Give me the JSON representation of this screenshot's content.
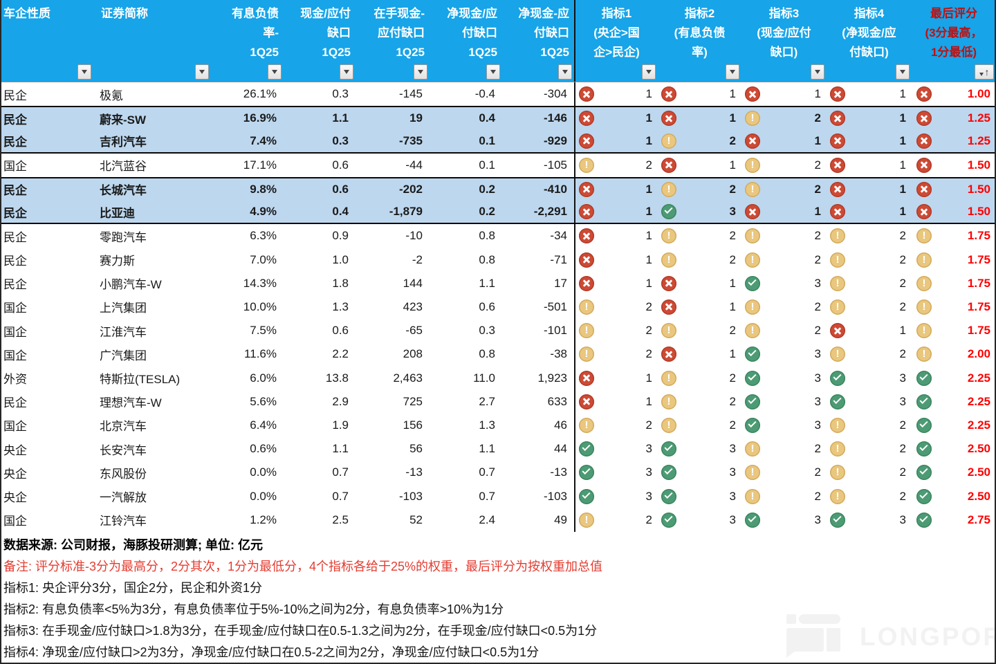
{
  "header": {
    "columns": [
      {
        "label": "车企性质"
      },
      {
        "label": "证券简称"
      },
      {
        "label": "有息负债\n率-\n1Q25"
      },
      {
        "label": "现金/应付\n缺口\n1Q25"
      },
      {
        "label": "在手现金-\n应付缺口\n1Q25"
      },
      {
        "label": "净现金/应\n付缺口\n1Q25"
      },
      {
        "label": "净现金-应\n付缺口\n1Q25"
      },
      {
        "label": "指标1\n(央企>国\n企>民企)"
      },
      {
        "label": "指标2\n(有息负债\n率)"
      },
      {
        "label": "指标3\n(现金/应付\n缺口)"
      },
      {
        "label": "指标4\n(净现金/应\n付缺口)"
      },
      {
        "label": "最后评分\n(3分最高，\n1分最低)",
        "accent": "#bf1010"
      }
    ]
  },
  "rows": [
    {
      "ownership": "民企",
      "name": "极氪",
      "debt_ratio": "26.1%",
      "cash_gap": "0.3",
      "cash_minus_gap": "-145",
      "net_cash_gap": "-0.4",
      "net_cash_minus_gap": "-304",
      "scores": [
        1,
        1,
        1,
        1
      ],
      "final_score": "1.00",
      "final_icon": "x",
      "highlight": false,
      "border_top": false,
      "border_bottom": false
    },
    {
      "ownership": "民企",
      "name": "蔚来-SW",
      "debt_ratio": "16.9%",
      "cash_gap": "1.1",
      "cash_minus_gap": "19",
      "net_cash_gap": "0.4",
      "net_cash_minus_gap": "-146",
      "scores": [
        1,
        1,
        2,
        1
      ],
      "final_score": "1.25",
      "final_icon": "x",
      "highlight": true,
      "border_top": true,
      "border_bottom": false
    },
    {
      "ownership": "民企",
      "name": "吉利汽车",
      "debt_ratio": "7.4%",
      "cash_gap": "0.3",
      "cash_minus_gap": "-735",
      "net_cash_gap": "0.1",
      "net_cash_minus_gap": "-929",
      "scores": [
        1,
        2,
        1,
        1
      ],
      "final_score": "1.25",
      "final_icon": "x",
      "highlight": true,
      "border_top": false,
      "border_bottom": true
    },
    {
      "ownership": "国企",
      "name": "北汽蓝谷",
      "debt_ratio": "17.1%",
      "cash_gap": "0.6",
      "cash_minus_gap": "-44",
      "net_cash_gap": "0.1",
      "net_cash_minus_gap": "-105",
      "scores": [
        2,
        1,
        2,
        1
      ],
      "final_score": "1.50",
      "final_icon": "x",
      "highlight": false,
      "border_top": false,
      "border_bottom": false
    },
    {
      "ownership": "民企",
      "name": "长城汽车",
      "debt_ratio": "9.8%",
      "cash_gap": "0.6",
      "cash_minus_gap": "-202",
      "net_cash_gap": "0.2",
      "net_cash_minus_gap": "-410",
      "scores": [
        1,
        2,
        2,
        1
      ],
      "final_score": "1.50",
      "final_icon": "x",
      "highlight": true,
      "border_top": true,
      "border_bottom": false
    },
    {
      "ownership": "民企",
      "name": "比亚迪",
      "debt_ratio": "4.9%",
      "cash_gap": "0.4",
      "cash_minus_gap": "-1,879",
      "net_cash_gap": "0.2",
      "net_cash_minus_gap": "-2,291",
      "scores": [
        1,
        3,
        1,
        1
      ],
      "final_score": "1.50",
      "final_icon": "x",
      "highlight": true,
      "border_top": false,
      "border_bottom": true
    },
    {
      "ownership": "民企",
      "name": "零跑汽车",
      "debt_ratio": "6.3%",
      "cash_gap": "0.9",
      "cash_minus_gap": "-10",
      "net_cash_gap": "0.8",
      "net_cash_minus_gap": "-34",
      "scores": [
        1,
        2,
        2,
        2
      ],
      "final_score": "1.75",
      "final_icon": "warn",
      "highlight": false,
      "border_top": false,
      "border_bottom": false
    },
    {
      "ownership": "民企",
      "name": "赛力斯",
      "debt_ratio": "7.0%",
      "cash_gap": "1.0",
      "cash_minus_gap": "-2",
      "net_cash_gap": "0.8",
      "net_cash_minus_gap": "-71",
      "scores": [
        1,
        2,
        2,
        2
      ],
      "final_score": "1.75",
      "final_icon": "warn",
      "highlight": false,
      "border_top": false,
      "border_bottom": false
    },
    {
      "ownership": "民企",
      "name": "小鹏汽车-W",
      "debt_ratio": "14.3%",
      "cash_gap": "1.8",
      "cash_minus_gap": "144",
      "net_cash_gap": "1.1",
      "net_cash_minus_gap": "17",
      "scores": [
        1,
        1,
        3,
        2
      ],
      "final_score": "1.75",
      "final_icon": "warn",
      "highlight": false,
      "border_top": false,
      "border_bottom": false
    },
    {
      "ownership": "国企",
      "name": "上汽集团",
      "debt_ratio": "10.0%",
      "cash_gap": "1.3",
      "cash_minus_gap": "423",
      "net_cash_gap": "0.6",
      "net_cash_minus_gap": "-501",
      "scores": [
        2,
        1,
        2,
        2
      ],
      "final_score": "1.75",
      "final_icon": "warn",
      "highlight": false,
      "border_top": false,
      "border_bottom": false
    },
    {
      "ownership": "国企",
      "name": "江淮汽车",
      "debt_ratio": "7.5%",
      "cash_gap": "0.6",
      "cash_minus_gap": "-65",
      "net_cash_gap": "0.3",
      "net_cash_minus_gap": "-101",
      "scores": [
        2,
        2,
        2,
        1
      ],
      "final_score": "1.75",
      "final_icon": "warn",
      "highlight": false,
      "border_top": false,
      "border_bottom": false
    },
    {
      "ownership": "国企",
      "name": "广汽集团",
      "debt_ratio": "11.6%",
      "cash_gap": "2.2",
      "cash_minus_gap": "208",
      "net_cash_gap": "0.8",
      "net_cash_minus_gap": "-38",
      "scores": [
        2,
        1,
        3,
        2
      ],
      "final_score": "2.00",
      "final_icon": "warn",
      "highlight": false,
      "border_top": false,
      "border_bottom": false
    },
    {
      "ownership": "外资",
      "name": "特斯拉(TESLA)",
      "debt_ratio": "6.0%",
      "cash_gap": "13.8",
      "cash_minus_gap": "2,463",
      "net_cash_gap": "11.0",
      "net_cash_minus_gap": "1,923",
      "scores": [
        1,
        2,
        3,
        3
      ],
      "final_score": "2.25",
      "final_icon": "check",
      "highlight": false,
      "border_top": false,
      "border_bottom": false
    },
    {
      "ownership": "民企",
      "name": "理想汽车-W",
      "debt_ratio": "5.6%",
      "cash_gap": "2.9",
      "cash_minus_gap": "725",
      "net_cash_gap": "2.7",
      "net_cash_minus_gap": "633",
      "scores": [
        1,
        2,
        3,
        3
      ],
      "final_score": "2.25",
      "final_icon": "check",
      "highlight": false,
      "border_top": false,
      "border_bottom": false
    },
    {
      "ownership": "国企",
      "name": "北京汽车",
      "debt_ratio": "6.4%",
      "cash_gap": "1.9",
      "cash_minus_gap": "156",
      "net_cash_gap": "1.3",
      "net_cash_minus_gap": "46",
      "scores": [
        2,
        2,
        3,
        2
      ],
      "final_score": "2.25",
      "final_icon": "check",
      "highlight": false,
      "border_top": false,
      "border_bottom": false
    },
    {
      "ownership": "央企",
      "name": "长安汽车",
      "debt_ratio": "0.6%",
      "cash_gap": "1.1",
      "cash_minus_gap": "56",
      "net_cash_gap": "1.1",
      "net_cash_minus_gap": "44",
      "scores": [
        3,
        3,
        2,
        2
      ],
      "final_score": "2.50",
      "final_icon": "check",
      "highlight": false,
      "border_top": false,
      "border_bottom": false
    },
    {
      "ownership": "央企",
      "name": "东风股份",
      "debt_ratio": "0.0%",
      "cash_gap": "0.7",
      "cash_minus_gap": "-13",
      "net_cash_gap": "0.7",
      "net_cash_minus_gap": "-13",
      "scores": [
        3,
        3,
        2,
        2
      ],
      "final_score": "2.50",
      "final_icon": "check",
      "highlight": false,
      "border_top": false,
      "border_bottom": false
    },
    {
      "ownership": "央企",
      "name": "一汽解放",
      "debt_ratio": "0.0%",
      "cash_gap": "0.7",
      "cash_minus_gap": "-103",
      "net_cash_gap": "0.7",
      "net_cash_minus_gap": "-103",
      "scores": [
        3,
        3,
        2,
        2
      ],
      "final_score": "2.50",
      "final_icon": "check",
      "highlight": false,
      "border_top": false,
      "border_bottom": false
    },
    {
      "ownership": "国企",
      "name": "江铃汽车",
      "debt_ratio": "1.2%",
      "cash_gap": "2.5",
      "cash_minus_gap": "52",
      "net_cash_gap": "2.4",
      "net_cash_minus_gap": "49",
      "scores": [
        2,
        3,
        3,
        3
      ],
      "final_score": "2.75",
      "final_icon": "check",
      "highlight": false,
      "border_top": false,
      "border_bottom": false
    }
  ],
  "icon_for_score": {
    "1": "x",
    "2": "warn",
    "3": "check"
  },
  "notes": [
    {
      "text": "数据来源: 公司财报，海豚投研测算; 单位: 亿元",
      "style": "bold"
    },
    {
      "text": "备注: 评分标准-3分为最高分，2分其次，1分为最低分，4个指标各给于25%的权重，最后评分为按权重加总值",
      "style": "red"
    },
    {
      "text": "指标1: 央企评分3分，国企2分，民企和外资1分",
      "style": "normal"
    },
    {
      "text": "指标2: 有息负债率<5%为3分，有息负债率位于5%-10%之间为2分，有息负债率>10%为1分",
      "style": "normal"
    },
    {
      "text": "指标3: 在手现金/应付缺口>1.8为3分，在手现金/应付缺口在0.5-1.3之间为2分，在手现金/应付缺口<0.5为1分",
      "style": "normal"
    },
    {
      "text": "指标4: 净现金/应付缺口>2为3分，净现金/应付缺口在0.5-2之间为2分，净现金/应付缺口<0.5为1分",
      "style": "normal"
    }
  ],
  "watermark": {
    "text": "LONGPORT"
  },
  "colors": {
    "header_bg": "#17a4e8",
    "header_text": "#ffffff",
    "score_header_red": "#bf1010",
    "score_value_red": "#fe0000",
    "highlight_row_bg": "#bdd7ee",
    "icon_red": "#cd4a35",
    "icon_yellow": "#e9c77f",
    "icon_green": "#4c9b74",
    "note_red": "#e43c31"
  }
}
